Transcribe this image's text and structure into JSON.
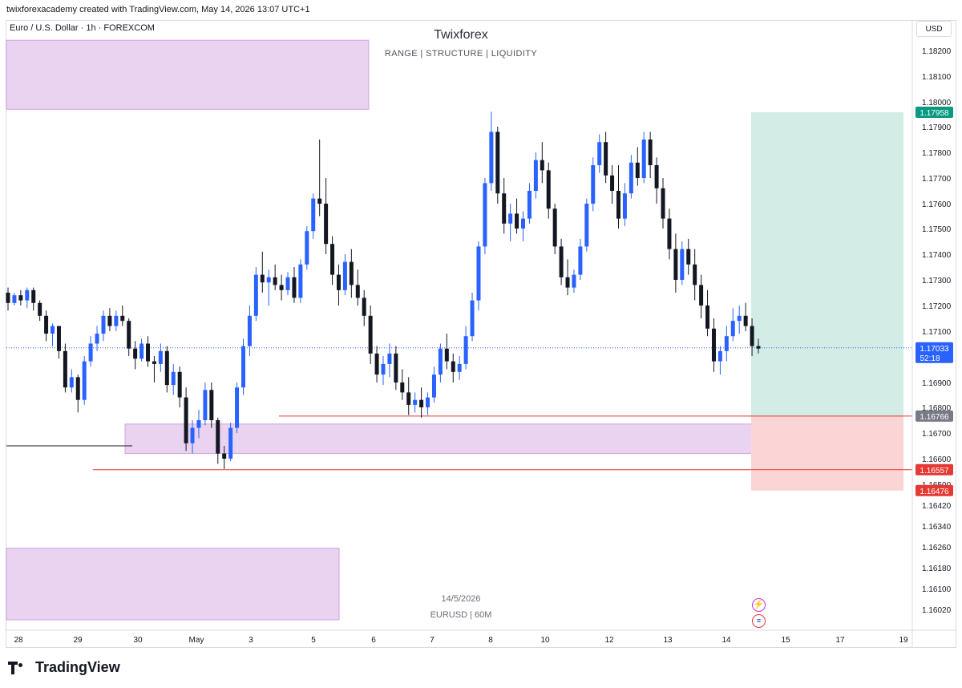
{
  "header": {
    "attribution": "twixforexacademy created with TradingView.com, May 14, 2026 13:07 UTC+1"
  },
  "symbol": {
    "title": "Euro / U.S. Dollar · 1h · FOREXCOM"
  },
  "overlay": {
    "title": "Twixforex",
    "subtitle": "RANGE  |  STRUCTURE  |  LIQUIDITY"
  },
  "currency_button": "USD",
  "watermark": {
    "date": "14/5/2026",
    "symbol": "EURUSD | 60M"
  },
  "logo": "TradingView",
  "colors": {
    "up": "#2962ff",
    "down": "#131722",
    "zone": "#e1c4ec",
    "zone_border": "#cfa5dd",
    "target": "#d3ede6",
    "stop": "#fbd5d5",
    "red_line": "#e53935",
    "last_price": "#2962ff"
  },
  "chart_data": {
    "type": "candlestick",
    "symbol": "EURUSD",
    "timeframe": "1h",
    "price_axis": {
      "ticks": [
        "1.18200",
        "1.18100",
        "1.18000",
        "1.17900",
        "1.17800",
        "1.17700",
        "1.17600",
        "1.17500",
        "1.17400",
        "1.17300",
        "1.17200",
        "1.17100",
        "1.17000",
        "1.16900",
        "1.16800",
        "1.16700",
        "1.16600",
        "1.16500",
        "1.16420",
        "1.16340",
        "1.16260",
        "1.16180",
        "1.16100",
        "1.16020"
      ]
    },
    "time_axis": {
      "labels": [
        "28",
        "29",
        "30",
        "May",
        "3",
        "5",
        "6",
        "7",
        "8",
        "10",
        "12",
        "13",
        "14",
        "15",
        "17",
        "19"
      ]
    },
    "price_labels": [
      {
        "value": "1.17958",
        "color": "#089981"
      },
      {
        "value": "1.17033",
        "sub": "52:18",
        "color": "#2962ff"
      },
      {
        "value": "1.16766",
        "color": "#787b86"
      },
      {
        "value": "1.16557",
        "color": "#e53935"
      },
      {
        "value": "1.16476",
        "color": "#e53935"
      }
    ],
    "last_price": 1.17033,
    "horizontal_lines": [
      {
        "price": 1.16766,
        "from": "4",
        "color": "#e53935"
      },
      {
        "price": 1.16557,
        "from": "29",
        "color": "#e53935"
      },
      {
        "price": 1.1665,
        "from": "28",
        "to": "30",
        "color": "#131722"
      }
    ],
    "zones": [
      {
        "from_price": 1.1797,
        "to_price": 1.1824,
        "from": "28",
        "to": "3"
      },
      {
        "from_price": 1.1662,
        "to_price": 1.16735,
        "from": "30",
        "to": "14"
      },
      {
        "from_price": 1.1598,
        "to_price": 1.16255,
        "from": "28",
        "to": "5"
      }
    ],
    "position": {
      "type": "long",
      "entry": 1.16766,
      "target": 1.17958,
      "stop": 1.16476
    },
    "candles": [
      [
        1.1725,
        1.1727,
        1.1718,
        1.1721
      ],
      [
        1.1721,
        1.1725,
        1.172,
        1.1724
      ],
      [
        1.1724,
        1.1726,
        1.172,
        1.1722
      ],
      [
        1.1722,
        1.1727,
        1.1719,
        1.1726
      ],
      [
        1.1726,
        1.1727,
        1.1718,
        1.1721
      ],
      [
        1.1721,
        1.1722,
        1.1714,
        1.1716
      ],
      [
        1.1716,
        1.1718,
        1.1706,
        1.1709
      ],
      [
        1.1709,
        1.1713,
        1.1704,
        1.1712
      ],
      [
        1.1712,
        1.1712,
        1.1699,
        1.1702
      ],
      [
        1.1702,
        1.1705,
        1.1686,
        1.1688
      ],
      [
        1.1688,
        1.1695,
        1.1686,
        1.1692
      ],
      [
        1.1692,
        1.1693,
        1.1678,
        1.1683
      ],
      [
        1.1683,
        1.17,
        1.1681,
        1.1698
      ],
      [
        1.1698,
        1.1708,
        1.1696,
        1.1705
      ],
      [
        1.1705,
        1.1712,
        1.1702,
        1.1709
      ],
      [
        1.1709,
        1.1718,
        1.1706,
        1.1716
      ],
      [
        1.1716,
        1.1719,
        1.171,
        1.1712
      ],
      [
        1.1712,
        1.1718,
        1.171,
        1.1716
      ],
      [
        1.1716,
        1.172,
        1.1712,
        1.1714
      ],
      [
        1.1714,
        1.1715,
        1.17,
        1.1703
      ],
      [
        1.1703,
        1.1706,
        1.1695,
        1.1699
      ],
      [
        1.1699,
        1.1707,
        1.1698,
        1.1705
      ],
      [
        1.1705,
        1.1708,
        1.1696,
        1.1698
      ],
      [
        1.1698,
        1.17,
        1.169,
        1.1697
      ],
      [
        1.1697,
        1.1705,
        1.1694,
        1.1702
      ],
      [
        1.1702,
        1.1704,
        1.1686,
        1.1689
      ],
      [
        1.1689,
        1.1697,
        1.1685,
        1.1694
      ],
      [
        1.1694,
        1.1696,
        1.168,
        1.1684
      ],
      [
        1.1684,
        1.1688,
        1.1663,
        1.1666
      ],
      [
        1.1666,
        1.1675,
        1.1662,
        1.1672
      ],
      [
        1.1672,
        1.1679,
        1.1668,
        1.1675
      ],
      [
        1.1675,
        1.169,
        1.1673,
        1.1687
      ],
      [
        1.1687,
        1.169,
        1.1672,
        1.1675
      ],
      [
        1.1675,
        1.1676,
        1.1658,
        1.1662
      ],
      [
        1.1662,
        1.1665,
        1.1656,
        1.166
      ],
      [
        1.166,
        1.1674,
        1.1659,
        1.1672
      ],
      [
        1.1672,
        1.169,
        1.167,
        1.1688
      ],
      [
        1.1688,
        1.1707,
        1.1685,
        1.1704
      ],
      [
        1.1704,
        1.172,
        1.17,
        1.1716
      ],
      [
        1.1716,
        1.1735,
        1.1714,
        1.1732
      ],
      [
        1.1732,
        1.1741,
        1.1725,
        1.1729
      ],
      [
        1.1729,
        1.1734,
        1.172,
        1.1731
      ],
      [
        1.1731,
        1.1736,
        1.1726,
        1.1728
      ],
      [
        1.1728,
        1.1732,
        1.1722,
        1.1726
      ],
      [
        1.1726,
        1.1733,
        1.1724,
        1.1731
      ],
      [
        1.1731,
        1.1735,
        1.1721,
        1.1723
      ],
      [
        1.1723,
        1.1738,
        1.1721,
        1.1736
      ],
      [
        1.1736,
        1.1751,
        1.1734,
        1.1749
      ],
      [
        1.1749,
        1.1764,
        1.1746,
        1.1762
      ],
      [
        1.1762,
        1.1785,
        1.1755,
        1.176
      ],
      [
        1.176,
        1.177,
        1.174,
        1.1744
      ],
      [
        1.1744,
        1.1747,
        1.1728,
        1.1732
      ],
      [
        1.1732,
        1.1736,
        1.172,
        1.1726
      ],
      [
        1.1726,
        1.174,
        1.1724,
        1.1737
      ],
      [
        1.1737,
        1.1742,
        1.1723,
        1.1728
      ],
      [
        1.1728,
        1.1734,
        1.172,
        1.1723
      ],
      [
        1.1723,
        1.1726,
        1.1712,
        1.1716
      ],
      [
        1.1716,
        1.172,
        1.1697,
        1.1701
      ],
      [
        1.1701,
        1.1704,
        1.169,
        1.1693
      ],
      [
        1.1693,
        1.17,
        1.1689,
        1.1697
      ],
      [
        1.1697,
        1.1705,
        1.1692,
        1.1701
      ],
      [
        1.1701,
        1.1704,
        1.1687,
        1.169
      ],
      [
        1.169,
        1.1695,
        1.1683,
        1.1686
      ],
      [
        1.1686,
        1.1692,
        1.1677,
        1.1681
      ],
      [
        1.1681,
        1.1686,
        1.1678,
        1.1683
      ],
      [
        1.1683,
        1.1688,
        1.1676,
        1.168
      ],
      [
        1.168,
        1.1686,
        1.1677,
        1.1684
      ],
      [
        1.1684,
        1.1696,
        1.1682,
        1.1693
      ],
      [
        1.1693,
        1.1705,
        1.169,
        1.1703
      ],
      [
        1.1703,
        1.1709,
        1.1695,
        1.1698
      ],
      [
        1.1698,
        1.1701,
        1.169,
        1.1694
      ],
      [
        1.1694,
        1.17,
        1.1691,
        1.1697
      ],
      [
        1.1697,
        1.1712,
        1.1695,
        1.1708
      ],
      [
        1.1708,
        1.1725,
        1.1706,
        1.1722
      ],
      [
        1.1722,
        1.1745,
        1.1718,
        1.1743
      ],
      [
        1.1743,
        1.177,
        1.174,
        1.1768
      ],
      [
        1.1768,
        1.1796,
        1.1765,
        1.1788
      ],
      [
        1.1788,
        1.179,
        1.176,
        1.1764
      ],
      [
        1.1764,
        1.177,
        1.1748,
        1.1752
      ],
      [
        1.1752,
        1.176,
        1.1745,
        1.1756
      ],
      [
        1.1756,
        1.1762,
        1.1748,
        1.175
      ],
      [
        1.175,
        1.1757,
        1.1745,
        1.1754
      ],
      [
        1.1754,
        1.1768,
        1.1752,
        1.1765
      ],
      [
        1.1765,
        1.178,
        1.1762,
        1.1777
      ],
      [
        1.1777,
        1.1784,
        1.1768,
        1.1773
      ],
      [
        1.1773,
        1.1776,
        1.1754,
        1.1758
      ],
      [
        1.1758,
        1.176,
        1.174,
        1.1743
      ],
      [
        1.1743,
        1.1746,
        1.1728,
        1.1731
      ],
      [
        1.1731,
        1.1738,
        1.1724,
        1.1727
      ],
      [
        1.1727,
        1.1734,
        1.1725,
        1.1732
      ],
      [
        1.1732,
        1.1746,
        1.173,
        1.1743
      ],
      [
        1.1743,
        1.1762,
        1.1741,
        1.176
      ],
      [
        1.176,
        1.1778,
        1.1757,
        1.1775
      ],
      [
        1.1775,
        1.1787,
        1.1772,
        1.1784
      ],
      [
        1.1784,
        1.1788,
        1.1768,
        1.1771
      ],
      [
        1.1771,
        1.1775,
        1.176,
        1.1765
      ],
      [
        1.1765,
        1.1775,
        1.175,
        1.1754
      ],
      [
        1.1754,
        1.1768,
        1.1751,
        1.1764
      ],
      [
        1.1764,
        1.1779,
        1.1762,
        1.1776
      ],
      [
        1.1776,
        1.1782,
        1.1767,
        1.177
      ],
      [
        1.177,
        1.1788,
        1.1768,
        1.1785
      ],
      [
        1.1785,
        1.1788,
        1.177,
        1.1775
      ],
      [
        1.1775,
        1.1778,
        1.176,
        1.1766
      ],
      [
        1.1766,
        1.177,
        1.175,
        1.1754
      ],
      [
        1.1754,
        1.1758,
        1.1738,
        1.1742
      ],
      [
        1.1742,
        1.1748,
        1.1725,
        1.173
      ],
      [
        1.173,
        1.1745,
        1.1728,
        1.1742
      ],
      [
        1.1742,
        1.1746,
        1.1732,
        1.1736
      ],
      [
        1.1736,
        1.1742,
        1.1722,
        1.1728
      ],
      [
        1.1728,
        1.1732,
        1.1715,
        1.172
      ],
      [
        1.172,
        1.1726,
        1.1708,
        1.1711
      ],
      [
        1.1711,
        1.1715,
        1.1694,
        1.1698
      ],
      [
        1.1698,
        1.1704,
        1.1693,
        1.1702
      ],
      [
        1.1702,
        1.1712,
        1.1698,
        1.1708
      ],
      [
        1.1708,
        1.1719,
        1.1706,
        1.1714
      ],
      [
        1.1714,
        1.172,
        1.1709,
        1.1716
      ],
      [
        1.1716,
        1.1721,
        1.171,
        1.1712
      ],
      [
        1.1712,
        1.1715,
        1.17,
        1.1704
      ],
      [
        1.1704,
        1.1707,
        1.1701,
        1.1703
      ]
    ]
  }
}
